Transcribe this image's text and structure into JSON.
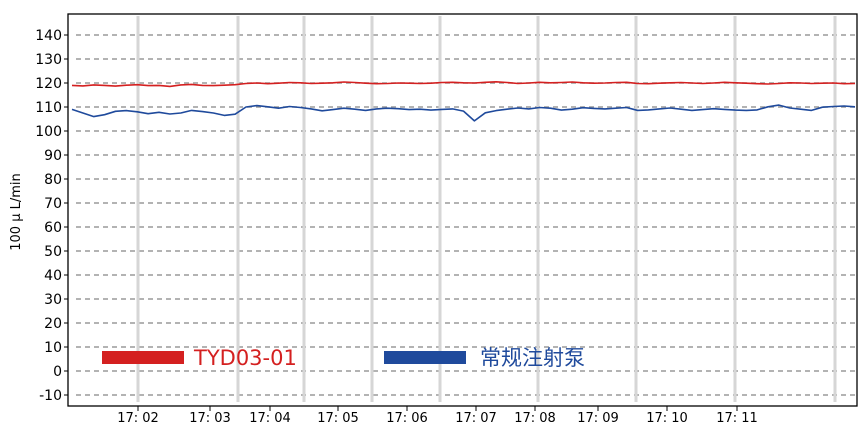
{
  "chart_data": {
    "type": "line",
    "ylabel": "100 μ L/min",
    "xlabel": "",
    "ylim": [
      -15,
      150
    ],
    "y_ticks": [
      -10,
      0,
      10,
      20,
      30,
      40,
      50,
      60,
      70,
      80,
      90,
      100,
      110,
      120,
      130,
      140
    ],
    "x_ticks": [
      "17: 02",
      "17: 03",
      "17: 04",
      "17: 05",
      "17: 06",
      "17: 07",
      "17: 08",
      "17: 09",
      "17: 10",
      "17: 11"
    ],
    "grid": true,
    "legend_position": "bottom-left",
    "series": [
      {
        "name": "TYD03-01",
        "color": "#d42020",
        "values": [
          119,
          118.8,
          119.2,
          119,
          118.7,
          119.1,
          119.3,
          118.9,
          119,
          118.6,
          119.2,
          119.4,
          119,
          118.9,
          119.1,
          119.3,
          119.8,
          120,
          119.7,
          119.9,
          120.2,
          120.1,
          119.8,
          119.9,
          120.1,
          120.4,
          120.2,
          119.9,
          119.7,
          119.8,
          120,
          119.9,
          119.8,
          119.9,
          120.2,
          120.3,
          120.1,
          120,
          120.3,
          120.5,
          120.2,
          119.8,
          120,
          120.3,
          120.1,
          120.2,
          120.4,
          120.1,
          119.9,
          120,
          120.2,
          120.3,
          119.8,
          119.7,
          119.9,
          120.1,
          120.2,
          120,
          119.8,
          120,
          120.3,
          120.1,
          119.9,
          119.7,
          119.6,
          119.8,
          120.1,
          120,
          119.8,
          119.9,
          120,
          119.7,
          119.8
        ],
        "x_positions_note": ""
      },
      {
        "name": "常规注射泵",
        "color": "#1f4a9c",
        "values": [
          109,
          107.5,
          106,
          106.8,
          108.2,
          108.5,
          108,
          107.2,
          107.8,
          107.1,
          107.5,
          108.6,
          108.1,
          107.5,
          106.5,
          107,
          110,
          110.6,
          110.1,
          109.5,
          110.2,
          109.8,
          109.2,
          108.4,
          108.9,
          109.5,
          109.1,
          108.6,
          109.2,
          109.5,
          109.3,
          108.9,
          109.1,
          108.7,
          109,
          109.2,
          108.3,
          104.2,
          107.6,
          108.5,
          109.1,
          109.6,
          109.2,
          109.8,
          109.5,
          108.7,
          109.1,
          109.7,
          109.4,
          109.2,
          109.5,
          109.8,
          108.6,
          108.8,
          109.2,
          109.6,
          109.1,
          108.6,
          108.9,
          109.3,
          109,
          108.7,
          108.6,
          108.8,
          110.1,
          110.8,
          109.6,
          109.1,
          108.6,
          109.9,
          110.2,
          110.4,
          110.1
        ]
      }
    ]
  }
}
